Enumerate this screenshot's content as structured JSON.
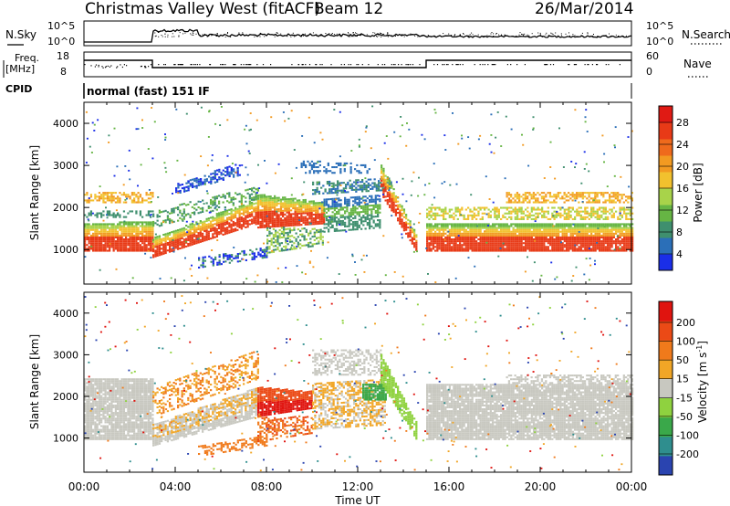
{
  "header": {
    "station": "Christmas Valley West (fitACF)",
    "beam": "Beam 12",
    "date": "26/Mar/2014"
  },
  "strip_labels": {
    "nsky": "N.Sky",
    "nsky_ticks": [
      "10^5",
      "10^0"
    ],
    "nsearch": "N.Search",
    "nsearch_ticks": [
      "10^5",
      "10^0"
    ],
    "freq": "Freq.",
    "freq_unit": "[MHz]",
    "freq_ticks": [
      "18",
      "8"
    ],
    "nave": "Nave",
    "nave_ticks": [
      "60",
      "0"
    ],
    "cpid": "CPID",
    "cpid_mode": "normal (fast) 151 IF"
  },
  "chart_data": [
    {
      "type": "heatmap",
      "panel": "power",
      "ylabel": "Slant Range [km]",
      "xlabel": "",
      "ylim": [
        180,
        4500
      ],
      "yticks": [
        1000,
        2000,
        3000,
        4000
      ],
      "colorbar_label": "Power [dB]",
      "colorbar_ticks": [
        4,
        8,
        12,
        16,
        20,
        24,
        28
      ],
      "colorbar_colors": [
        "#1a2ee8",
        "#2b6fb8",
        "#3f8f6e",
        "#66b544",
        "#a8d34a",
        "#f2c12e",
        "#f29a21",
        "#ef6a1c",
        "#e83a17",
        "#e01a14"
      ]
    },
    {
      "type": "heatmap",
      "panel": "velocity",
      "ylabel": "Slant Range [km]",
      "xlabel": "Time UT",
      "ylim": [
        180,
        4500
      ],
      "yticks": [
        1000,
        2000,
        3000,
        4000
      ],
      "xticks": [
        "00:00",
        "04:00",
        "08:00",
        "12:00",
        "16:00",
        "20:00",
        "00:00"
      ],
      "colorbar_label": "Velocity [m s^-1]",
      "colorbar_ticks": [
        "200",
        "100",
        "50",
        "15",
        "-15",
        "-50",
        "-100",
        "-200"
      ],
      "colorbar_colors": [
        "#2a44b0",
        "#2f8e8e",
        "#3aa84a",
        "#8fd23f",
        "#c8c8c0",
        "#f1a626",
        "#f07a1b",
        "#eb4a16",
        "#e0140f"
      ]
    }
  ]
}
